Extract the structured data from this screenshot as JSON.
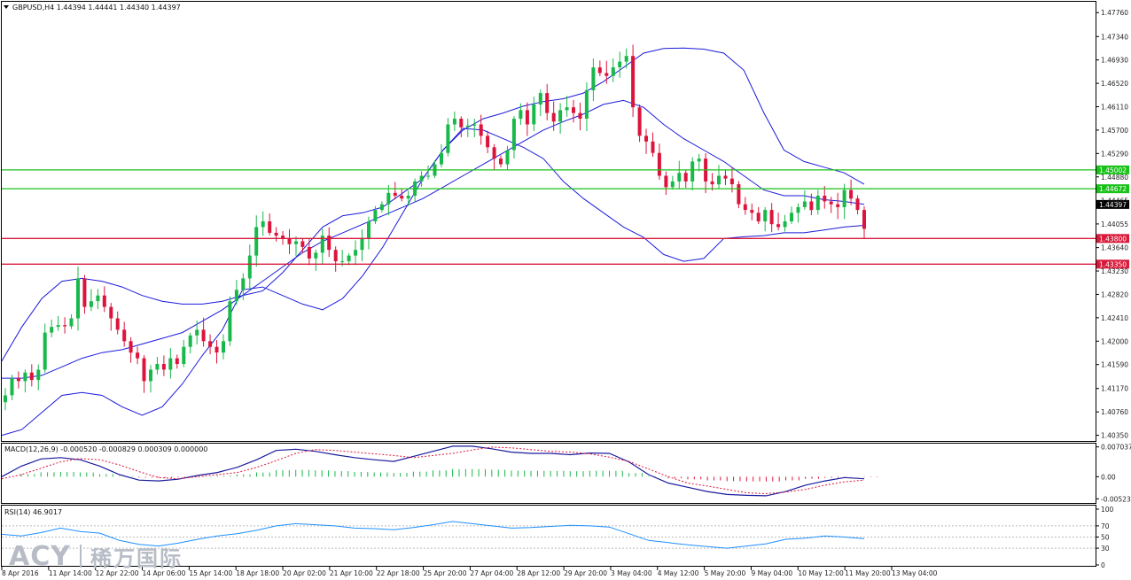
{
  "chart_data": {
    "type": "candlestick",
    "symbol_header": "GBPUSD,H4  1.44394 1.44441 1.44340 1.44397",
    "price_ticks": [
      "1.47760",
      "1.47340",
      "1.46930",
      "1.46520",
      "1.46110",
      "1.45700",
      "1.45290",
      "1.44880",
      "1.44465",
      "1.44055",
      "1.43640",
      "1.43230",
      "1.42820",
      "1.42410",
      "1.42000",
      "1.41590",
      "1.41170",
      "1.40760",
      "1.40350"
    ],
    "ylim": [
      1.4025,
      1.4795
    ],
    "time_ticks": [
      "8 Apr 2016",
      "11 Apr 14:00",
      "12 Apr 22:00",
      "14 Apr 06:00",
      "15 Apr 14:00",
      "18 Apr 18:00",
      "20 Apr 02:00",
      "21 Apr 10:00",
      "22 Apr 18:00",
      "25 Apr 20:00",
      "27 Apr 04:00",
      "28 Apr 12:00",
      "29 Apr 20:00",
      "3 May 04:00",
      "4 May 12:00",
      "5 May 20:00",
      "9 May 04:00",
      "10 May 12:00",
      "11 May 20:00",
      "13 May 04:00"
    ],
    "levels": [
      {
        "label": "1.45002",
        "value": 1.45002,
        "color": "#19c219"
      },
      {
        "label": "1.44672",
        "value": 1.44672,
        "color": "#19c219"
      },
      {
        "label": "1.43800",
        "value": 1.438,
        "color": "#d81b3b"
      },
      {
        "label": "1.43350",
        "value": 1.4335,
        "color": "#d81b3b"
      }
    ],
    "current_price": {
      "label": "1.44397",
      "value": 1.44397
    },
    "closes": [
      1.4105,
      1.4135,
      1.413,
      1.4145,
      1.4132,
      1.415,
      1.4215,
      1.4225,
      1.4228,
      1.4226,
      1.424,
      1.431,
      1.426,
      1.427,
      1.428,
      1.426,
      1.424,
      1.422,
      1.42,
      1.418,
      1.417,
      1.413,
      1.415,
      1.416,
      1.415,
      1.417,
      1.416,
      1.419,
      1.421,
      1.422,
      1.42,
      1.419,
      1.418,
      1.42,
      1.427,
      1.429,
      1.431,
      1.435,
      1.44,
      1.441,
      1.439,
      1.4385,
      1.438,
      1.437,
      1.4375,
      1.4365,
      1.4345,
      1.4355,
      1.4385,
      1.436,
      1.434,
      1.434,
      1.435,
      1.436,
      1.438,
      1.441,
      1.443,
      1.444,
      1.446,
      1.4455,
      1.445,
      1.4455,
      1.448,
      1.449,
      1.449,
      1.451,
      1.453,
      1.458,
      1.459,
      1.4575,
      1.4578,
      1.458,
      1.456,
      1.454,
      1.452,
      1.451,
      1.4535,
      1.459,
      1.4605,
      1.458,
      1.4615,
      1.4635,
      1.46,
      1.4585,
      1.4605,
      1.461,
      1.46,
      1.459,
      1.464,
      1.468,
      1.467,
      1.4665,
      1.468,
      1.469,
      1.47,
      1.461,
      1.456,
      1.455,
      1.453,
      1.449,
      1.447,
      1.448,
      1.4495,
      1.448,
      1.4515,
      1.452,
      1.448,
      1.4475,
      1.449,
      1.4485,
      1.4475,
      1.444,
      1.443,
      1.4425,
      1.441,
      1.443,
      1.4405,
      1.44,
      1.441,
      1.4425,
      1.4435,
      1.4445,
      1.443,
      1.4455,
      1.4445,
      1.444,
      1.4435,
      1.4465,
      1.445,
      1.443,
      1.4397
    ],
    "bb_upper": [
      1.4165,
      1.4225,
      1.4275,
      1.4305,
      1.431,
      1.4305,
      1.4295,
      1.428,
      1.427,
      1.4265,
      1.4265,
      1.427,
      1.428,
      1.4288,
      1.432,
      1.436,
      1.44,
      1.442,
      1.4425,
      1.4435,
      1.446,
      1.4485,
      1.4535,
      1.457,
      1.459,
      1.46,
      1.4612,
      1.462,
      1.4625,
      1.4635,
      1.4655,
      1.468,
      1.4705,
      1.4713,
      1.4714,
      1.4712,
      1.4705,
      1.4675,
      1.46,
      1.4535,
      1.4515,
      1.4505,
      1.4495,
      1.4475
    ],
    "bb_mid": [
      1.4135,
      1.4135,
      1.414,
      1.4155,
      1.417,
      1.418,
      1.4185,
      1.4195,
      1.4205,
      1.4215,
      1.4235,
      1.4255,
      1.428,
      1.4305,
      1.433,
      1.4355,
      1.4375,
      1.439,
      1.4405,
      1.442,
      1.4435,
      1.445,
      1.447,
      1.449,
      1.451,
      1.453,
      1.455,
      1.457,
      1.4585,
      1.4598,
      1.4615,
      1.4622,
      1.461,
      1.458,
      1.4555,
      1.4535,
      1.4515,
      1.449,
      1.4465,
      1.4455,
      1.4455,
      1.4448,
      1.4445,
      1.444
    ],
    "bb_lower": [
      1.4035,
      1.4045,
      1.4075,
      1.4105,
      1.411,
      1.4105,
      1.4085,
      1.407,
      1.4085,
      1.4125,
      1.4175,
      1.422,
      1.429,
      1.4295,
      1.428,
      1.4265,
      1.4255,
      1.4275,
      1.4315,
      1.4365,
      1.4425,
      1.4485,
      1.4535,
      1.4573,
      1.457,
      1.4555,
      1.454,
      1.452,
      1.448,
      1.445,
      1.4425,
      1.44,
      1.4382,
      1.4352,
      1.434,
      1.4345,
      1.438,
      1.4383,
      1.4385,
      1.439,
      1.439,
      1.4395,
      1.44,
      1.4403
    ],
    "macd": {
      "title": "MACD(12,26,9) -0.000520 -0.000829 0.000309 0.000000",
      "ticks": [
        "0.007037",
        "0.00",
        "-0.00523"
      ],
      "ylim": [
        -0.0062,
        0.0076
      ],
      "signal": [
        -0.0005,
        0.0005,
        0.002,
        0.0035,
        0.0043,
        0.004,
        0.0028,
        0.0012,
        -0.0002,
        -0.0005,
        0.0,
        0.0005,
        0.001,
        0.0022,
        0.0038,
        0.0055,
        0.0064,
        0.0062,
        0.0058,
        0.0054,
        0.005,
        0.0045,
        0.005,
        0.0055,
        0.0063,
        0.007,
        0.0068,
        0.0064,
        0.006,
        0.0058,
        0.0054,
        0.0046,
        0.0036,
        0.0018,
        0.0,
        -0.0015,
        -0.0022,
        -0.003,
        -0.0038,
        -0.004,
        -0.0036,
        -0.003,
        -0.002,
        -0.0012,
        -0.0008
      ],
      "macd_line": [
        0.0,
        0.0025,
        0.0042,
        0.0045,
        0.004,
        0.0025,
        0.0005,
        -0.0008,
        -0.001,
        -0.0006,
        0.0003,
        0.001,
        0.0022,
        0.004,
        0.0062,
        0.0065,
        0.006,
        0.0052,
        0.0045,
        0.004,
        0.0036,
        0.0048,
        0.006,
        0.0072,
        0.0072,
        0.0066,
        0.0058,
        0.0055,
        0.0055,
        0.0052,
        0.0056,
        0.0055,
        0.0035,
        0.0005,
        -0.0015,
        -0.0025,
        -0.0035,
        -0.0042,
        -0.0044,
        -0.0045,
        -0.0035,
        -0.002,
        -0.001,
        -0.0002,
        -0.0005
      ]
    },
    "rsi": {
      "title": "RSI(14) 46.9017",
      "ticks": [
        "100",
        "70",
        "50",
        "30",
        "0"
      ],
      "ylim": [
        0,
        100
      ],
      "values": [
        55,
        52,
        58,
        66,
        60,
        57,
        44,
        37,
        34,
        39,
        46,
        52,
        56,
        62,
        70,
        74,
        72,
        70,
        66,
        65,
        63,
        67,
        72,
        78,
        74,
        70,
        66,
        67,
        69,
        71,
        70,
        68,
        56,
        44,
        40,
        36,
        33,
        30,
        34,
        38,
        46,
        48,
        52,
        50,
        47
      ]
    }
  },
  "watermark": {
    "latin": "ACY",
    "cjk": "稀万国际"
  }
}
